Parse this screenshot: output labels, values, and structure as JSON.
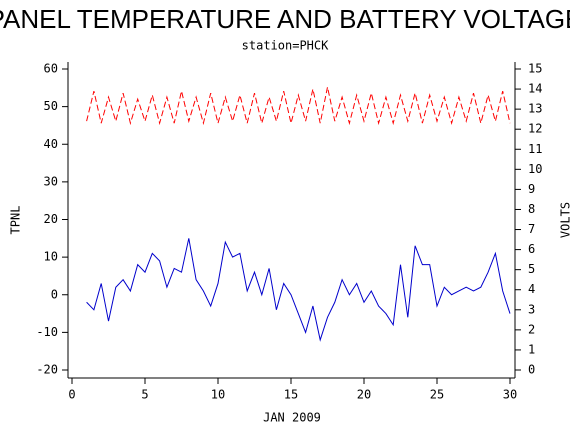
{
  "chart_data": {
    "type": "line",
    "title": "PANEL TEMPERATURE AND BATTERY VOLTAGE",
    "subtitle": "station=PHCK",
    "xlabel": "JAN 2009",
    "ylabel": "TPNL",
    "y2label": "VOLTS",
    "x": [
      1,
      1.5,
      2,
      2.5,
      3,
      3.5,
      4,
      4.5,
      5,
      5.5,
      6,
      6.5,
      7,
      7.5,
      8,
      8.5,
      9,
      9.5,
      10,
      10.5,
      11,
      11.5,
      12,
      12.5,
      13,
      13.5,
      14,
      14.5,
      15,
      15.5,
      16,
      16.5,
      17,
      17.5,
      18,
      18.5,
      19,
      19.5,
      20,
      20.5,
      21,
      21.5,
      22,
      22.5,
      23,
      23.5,
      24,
      24.5,
      25,
      25.5,
      26,
      26.5,
      27,
      27.5,
      28,
      28.5,
      29,
      29.5,
      30
    ],
    "series": [
      {
        "color": "#0000cc",
        "axis": "y",
        "values": [
          -2,
          -4,
          3,
          -7,
          2,
          4,
          1,
          8,
          6,
          11,
          9,
          2,
          7,
          6,
          15,
          4,
          1,
          -3,
          3,
          14,
          10,
          11,
          1,
          6,
          0,
          7,
          -4,
          3,
          0,
          -5,
          -10,
          -3,
          -12,
          -6,
          -2,
          4,
          0,
          3,
          -2,
          1,
          -3,
          -5,
          -8,
          8,
          -6,
          13,
          8,
          8,
          -3,
          2,
          0,
          1,
          2,
          1,
          2,
          6,
          11,
          1,
          -5
        ]
      },
      {
        "color": "#ff0000",
        "axis": "y2",
        "line_style": "dashed",
        "values": [
          12.4,
          13.9,
          12.3,
          13.6,
          12.4,
          13.8,
          12.3,
          13.5,
          12.4,
          13.7,
          12.3,
          13.6,
          12.3,
          13.9,
          12.4,
          13.6,
          12.3,
          13.8,
          12.3,
          13.6,
          12.4,
          13.7,
          12.3,
          13.8,
          12.3,
          13.6,
          12.4,
          13.9,
          12.3,
          13.7,
          12.4,
          14.0,
          12.3,
          14.1,
          12.4,
          13.6,
          12.3,
          13.7,
          12.4,
          13.8,
          12.3,
          13.6,
          12.3,
          13.7,
          12.4,
          13.8,
          12.3,
          13.7,
          12.4,
          13.6,
          12.3,
          13.6,
          12.4,
          13.8,
          12.3,
          13.7,
          12.4,
          13.9,
          12.3
        ]
      }
    ],
    "xlim": [
      0,
      30
    ],
    "xticks": [
      0,
      5,
      10,
      15,
      20,
      25,
      30
    ],
    "ylim": [
      -20,
      60
    ],
    "yticks": [
      -20,
      -10,
      0,
      10,
      20,
      30,
      40,
      50,
      60
    ],
    "y2lim": [
      0,
      15
    ],
    "y2ticks": [
      0,
      1,
      2,
      3,
      4,
      5,
      6,
      7,
      8,
      9,
      10,
      11,
      12,
      13,
      14,
      15
    ]
  }
}
